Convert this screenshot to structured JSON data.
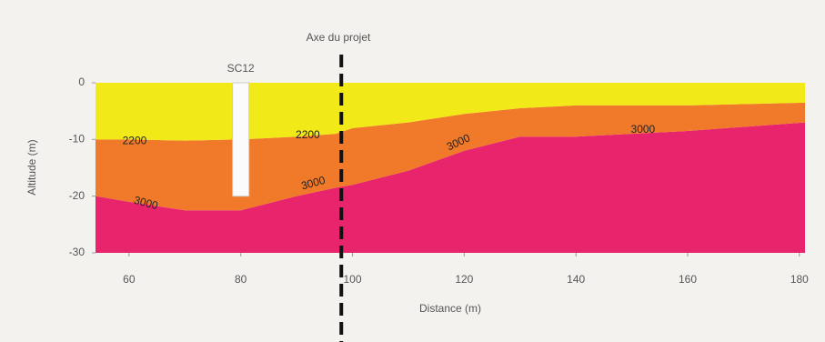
{
  "chart_data": {
    "type": "layered-profile",
    "title": "Axe du projet",
    "xlabel": "Distance (m)",
    "ylabel": "Altitude (m)",
    "x": [
      54,
      60,
      70,
      80,
      90,
      97,
      100,
      110,
      120,
      130,
      140,
      160,
      181
    ],
    "series": [
      {
        "name": "2200",
        "color": "#f2e918",
        "values": [
          -10,
          -10,
          -10.2,
          -10,
          -9.5,
          -9,
          -8,
          -7,
          -5.5,
          -4.5,
          -4,
          -4,
          -3.5
        ]
      },
      {
        "name": "3000",
        "color": "#f07a2a",
        "values": [
          -20,
          -21,
          -22.5,
          -22.5,
          -20,
          -18.5,
          -18,
          -15.5,
          -12,
          -9.5,
          -9.5,
          -8.5,
          -7
        ]
      }
    ],
    "bottom_color": "#e8246c",
    "annotations": [
      {
        "series": 0,
        "x": 61,
        "y": -10.3,
        "angle": 0
      },
      {
        "series": 0,
        "x": 92,
        "y": -9.3,
        "angle": 0
      },
      {
        "series": 1,
        "x": 63,
        "y": -21.3,
        "angle": 15
      },
      {
        "series": 1,
        "x": 93,
        "y": -17.8,
        "angle": -15
      },
      {
        "series": 1,
        "x": 119,
        "y": -10.6,
        "angle": -25
      },
      {
        "series": 1,
        "x": 152,
        "y": -8.3,
        "angle": 0
      }
    ],
    "axis_line_x": 98,
    "borehole": {
      "name": "SC12",
      "x": 80,
      "top": 0,
      "bottom": -20
    },
    "xlim": [
      54,
      181
    ],
    "ylim": [
      -30,
      0
    ],
    "xticks": [
      60,
      80,
      100,
      120,
      140,
      160,
      180
    ],
    "yticks": [
      0,
      -10,
      -20,
      -30
    ]
  }
}
